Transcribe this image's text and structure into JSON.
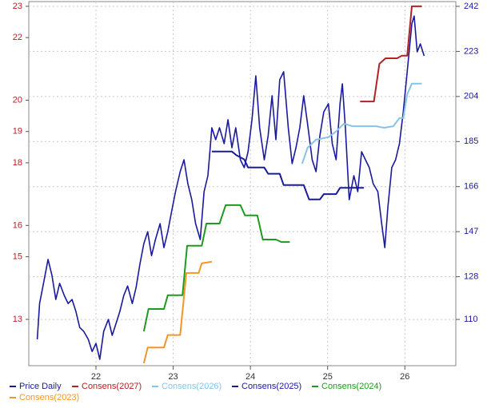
{
  "chart_data": {
    "type": "line",
    "xlim": [
      21.13,
      26.66
    ],
    "xticks": [
      22,
      23,
      24,
      25,
      26
    ],
    "ylim": [
      11.52,
      23.15
    ],
    "yticks": [
      13,
      15,
      16,
      18,
      19,
      20,
      22,
      23
    ],
    "y2lim": [
      90.5,
      244
    ],
    "y2ticks": [
      110,
      128,
      147,
      166,
      185,
      204,
      223,
      242
    ],
    "grid": true,
    "legend": "bottom",
    "series": [
      {
        "name": "Price Daily",
        "color": "#1a1a9c",
        "axis": "y2",
        "x": [
          21.24,
          21.27,
          21.33,
          21.38,
          21.43,
          21.48,
          21.53,
          21.59,
          21.64,
          21.69,
          21.74,
          21.79,
          21.84,
          21.9,
          21.95,
          22.0,
          22.05,
          22.1,
          22.16,
          22.21,
          22.26,
          22.31,
          22.36,
          22.41,
          22.47,
          22.52,
          22.57,
          22.62,
          22.67,
          22.72,
          22.77,
          22.83,
          22.88,
          22.93,
          22.98,
          23.03,
          23.09,
          23.14,
          23.19,
          23.24,
          23.29,
          23.35,
          23.4,
          23.45,
          23.5,
          23.55,
          23.6,
          23.66,
          23.71,
          23.76,
          23.81,
          23.87,
          23.92,
          23.97,
          24.02,
          24.07,
          24.12,
          24.18,
          24.23,
          24.28,
          24.33,
          24.38,
          24.43,
          24.49,
          24.54,
          24.59,
          24.64,
          24.69,
          24.74,
          24.8,
          24.85,
          24.9,
          24.95,
          25.01,
          25.06,
          25.11,
          25.16,
          25.19,
          25.23,
          25.28,
          25.34,
          25.39,
          25.44,
          25.49,
          25.54,
          25.59,
          25.65,
          25.7,
          25.74,
          25.78,
          25.83,
          25.88,
          25.93,
          25.98,
          26.03,
          26.09,
          26.12,
          26.16,
          26.2,
          26.25
        ],
        "values": [
          101.6,
          116.7,
          126.8,
          135.3,
          128.5,
          118.4,
          125.2,
          120.1,
          116.7,
          118.4,
          113.4,
          106.6,
          105,
          101.6,
          96.5,
          99.9,
          93.2,
          105,
          110,
          103.3,
          108.3,
          113.4,
          120.1,
          124.1,
          116.7,
          123.5,
          133.6,
          142,
          147,
          136.9,
          143.7,
          150.4,
          140.3,
          147,
          155.5,
          163.9,
          172.3,
          177.3,
          167.2,
          160.5,
          150.4,
          143.7,
          163.9,
          170.6,
          190.8,
          185.8,
          190.8,
          184.1,
          194.2,
          182.4,
          190.8,
          177.3,
          174,
          180.7,
          194.2,
          212.7,
          190.8,
          177.3,
          187.4,
          204.3,
          185.8,
          211,
          214.4,
          190.8,
          175.7,
          182.4,
          190.8,
          204.3,
          192.5,
          177.3,
          172.3,
          187.4,
          197.5,
          200.9,
          184.1,
          177.3,
          200.9,
          209.3,
          190.8,
          160.5,
          170.6,
          163.9,
          180.7,
          177.3,
          174,
          167.2,
          163.9,
          150.4,
          140.3,
          157.2,
          174,
          177.3,
          184.1,
          197.5,
          214.4,
          234.6,
          237.9,
          222.8,
          226.2,
          221.1
        ]
      },
      {
        "name": "Consens(2027)",
        "color": "#b22222",
        "x": [
          25.42,
          25.6,
          25.67,
          25.75,
          25.9,
          25.96,
          26.03,
          26.09,
          26.22
        ],
        "values": [
          19.96,
          19.96,
          21.16,
          21.34,
          21.34,
          21.42,
          21.42,
          23.0,
          23.0
        ]
      },
      {
        "name": "Consens(2026)",
        "color": "#87c3e6",
        "x": [
          24.67,
          24.74,
          24.85,
          25.01,
          25.11,
          25.21,
          25.32,
          25.63,
          25.73,
          25.85,
          25.93,
          25.98,
          26.03,
          26.09,
          26.22
        ],
        "values": [
          17.97,
          18.48,
          18.74,
          18.82,
          19.0,
          19.25,
          19.17,
          19.17,
          19.12,
          19.17,
          19.43,
          19.43,
          20.19,
          20.53,
          20.53
        ]
      },
      {
        "name": "Consens(2025)",
        "color": "#1a1a9c",
        "x": [
          23.5,
          23.76,
          23.82,
          23.92,
          23.97,
          24.18,
          24.23,
          24.38,
          24.43,
          24.69,
          24.76,
          24.9,
          24.95,
          25.11,
          25.16,
          25.47
        ],
        "values": [
          18.36,
          18.36,
          18.24,
          18.11,
          17.85,
          17.85,
          17.65,
          17.65,
          17.29,
          17.29,
          16.83,
          16.83,
          17.0,
          17.0,
          17.2,
          17.2
        ]
      },
      {
        "name": "Consens(2024)",
        "color": "#1e9a1e",
        "x": [
          22.62,
          22.68,
          22.88,
          22.93,
          23.12,
          23.18,
          23.37,
          23.43,
          23.6,
          23.68,
          23.87,
          23.93,
          24.09,
          24.16,
          24.33,
          24.4,
          24.51
        ],
        "values": [
          12.62,
          13.33,
          13.33,
          13.77,
          13.77,
          15.35,
          15.35,
          16.06,
          16.06,
          16.65,
          16.65,
          16.32,
          16.32,
          15.55,
          15.55,
          15.47,
          15.47
        ]
      },
      {
        "name": "Consens(2023)",
        "color": "#f0962a",
        "x": [
          22.62,
          22.67,
          22.88,
          22.93,
          23.09,
          23.17,
          23.33,
          23.37,
          23.5
        ],
        "values": [
          11.6,
          12.1,
          12.1,
          12.5,
          12.5,
          14.48,
          14.48,
          14.79,
          14.84
        ]
      }
    ]
  }
}
